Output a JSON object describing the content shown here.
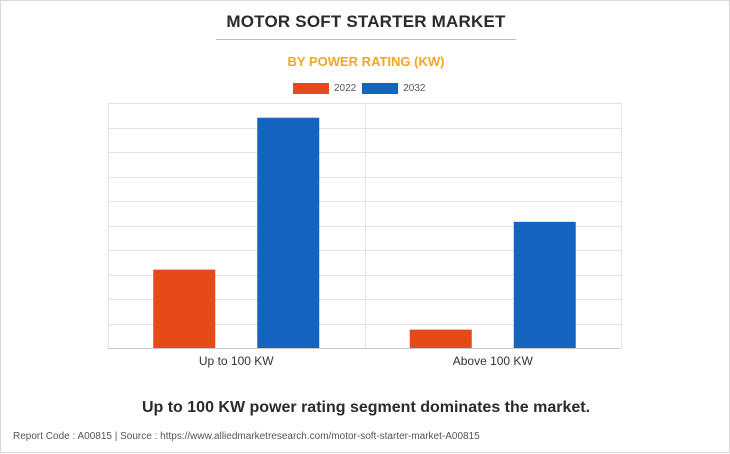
{
  "title": "MOTOR SOFT STARTER MARKET",
  "subtitle": "BY POWER RATING (KW)",
  "headline": "Up to 100 KW power rating segment dominates the market.",
  "footer": "Report Code : A00815  |  Source : https://www.alliedmarketresearch.com/motor-soft-starter-market-A00815",
  "colors": {
    "series_2022": "#e64a19",
    "series_2032": "#1565c0",
    "title": "#2b2b2b",
    "subtitle": "#f5a623",
    "grid": "#e3e3e3"
  },
  "chart_data": {
    "type": "bar",
    "title": "MOTOR SOFT STARTER MARKET",
    "subtitle": "BY POWER RATING (KW)",
    "categories": [
      "Up to 100 KW",
      "Above 100 KW"
    ],
    "series": [
      {
        "name": "2022",
        "color": "#e64a19",
        "values": [
          32,
          7.5
        ]
      },
      {
        "name": "2032",
        "color": "#1565c0",
        "values": [
          94,
          51.5
        ]
      }
    ],
    "ylim": [
      0,
      100
    ],
    "ytick_step": 10,
    "xlabel": "",
    "ylabel": "",
    "grid": true,
    "legend": "top-center"
  }
}
